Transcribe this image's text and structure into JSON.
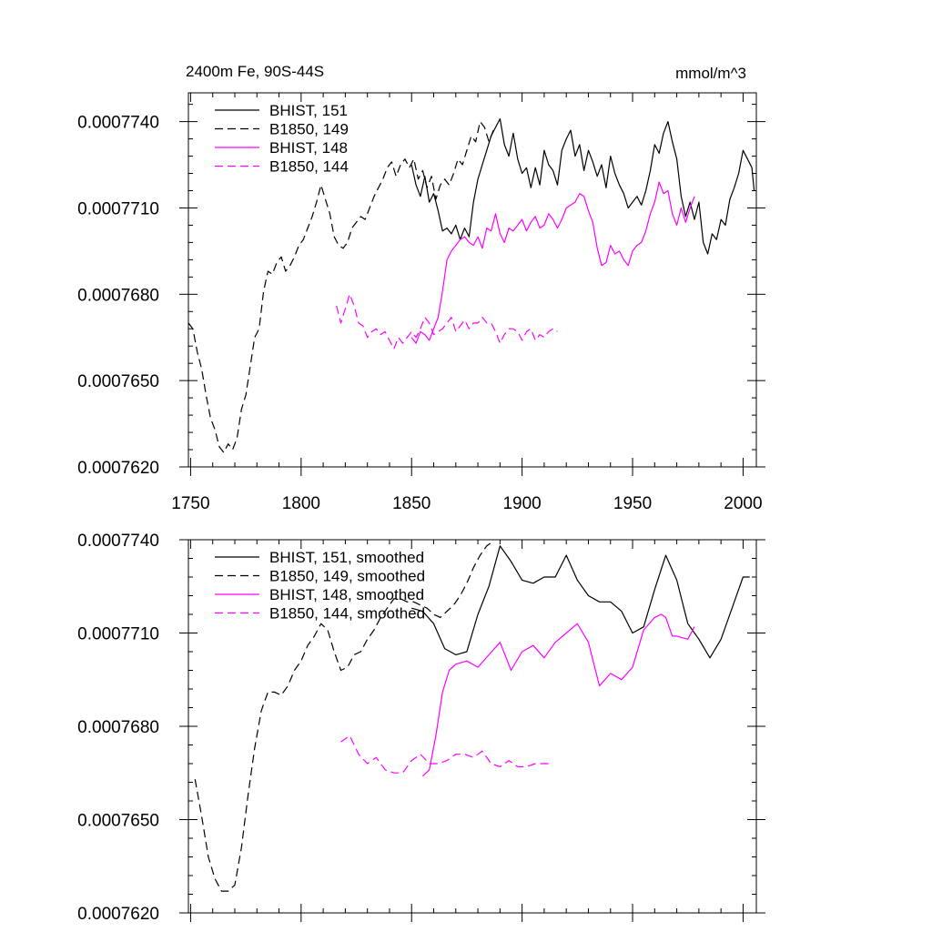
{
  "chart_data": [
    {
      "type": "line",
      "title": "2400m Fe, 90S-44S",
      "units": "mmol/m^3",
      "xlim": [
        1749,
        2006
      ],
      "ylim": [
        0.000762,
        0.000775
      ],
      "yticks": [
        "0.0007620",
        "0.0007650",
        "0.0007680",
        "0.0007710",
        "0.0007740"
      ],
      "xticks": [
        "1750",
        "1800",
        "1850",
        "1900",
        "1950",
        "2000"
      ],
      "legend_position": "top-left",
      "grid": false,
      "series": [
        {
          "name": "BHIST, 151",
          "color": "#000000",
          "dash": "solid",
          "x": [
            1850,
            1852,
            1854,
            1856,
            1858,
            1860,
            1862,
            1864,
            1866,
            1868,
            1870,
            1872,
            1874,
            1876,
            1878,
            1880,
            1882,
            1884,
            1886,
            1888,
            1890,
            1892,
            1894,
            1896,
            1898,
            1900,
            1902,
            1904,
            1906,
            1908,
            1910,
            1912,
            1914,
            1916,
            1918,
            1920,
            1922,
            1924,
            1926,
            1928,
            1930,
            1932,
            1934,
            1936,
            1938,
            1940,
            1942,
            1944,
            1946,
            1948,
            1950,
            1952,
            1954,
            1956,
            1958,
            1960,
            1962,
            1964,
            1966,
            1968,
            1970,
            1972,
            1974,
            1976,
            1978,
            1980,
            1982,
            1984,
            1986,
            1988,
            1990,
            1992,
            1994,
            1996,
            1998,
            2000,
            2002,
            2004,
            2005
          ],
          "values": [
            0.0007725,
            0.0007718,
            0.0007714,
            0.0007721,
            0.0007712,
            0.0007715,
            0.0007709,
            0.0007702,
            0.0007703,
            0.0007701,
            0.0007704,
            0.0007699,
            0.0007703,
            0.00077,
            0.0007712,
            0.000772,
            0.0007725,
            0.000773,
            0.0007735,
            0.0007738,
            0.0007741,
            0.0007732,
            0.0007728,
            0.0007736,
            0.0007727,
            0.0007722,
            0.0007724,
            0.0007717,
            0.0007724,
            0.0007718,
            0.000773,
            0.0007725,
            0.0007723,
            0.0007718,
            0.000773,
            0.0007734,
            0.0007737,
            0.0007728,
            0.0007732,
            0.0007723,
            0.000773,
            0.0007726,
            0.0007721,
            0.0007725,
            0.0007717,
            0.0007728,
            0.0007722,
            0.0007718,
            0.0007715,
            0.000771,
            0.0007712,
            0.0007714,
            0.0007711,
            0.0007716,
            0.0007723,
            0.0007732,
            0.0007729,
            0.0007736,
            0.000774,
            0.0007733,
            0.0007727,
            0.0007714,
            0.0007707,
            0.0007712,
            0.0007706,
            0.0007712,
            0.0007698,
            0.0007694,
            0.0007701,
            0.0007699,
            0.0007706,
            0.0007704,
            0.0007713,
            0.0007717,
            0.0007722,
            0.000773,
            0.0007727,
            0.0007724,
            0.0007716
          ]
        },
        {
          "name": "B1850, 149",
          "color": "#000000",
          "dash": "dashed",
          "x": [
            1749,
            1751,
            1753,
            1755,
            1757,
            1759,
            1761,
            1763,
            1765,
            1767,
            1769,
            1771,
            1773,
            1775,
            1777,
            1779,
            1781,
            1783,
            1785,
            1787,
            1789,
            1791,
            1793,
            1795,
            1797,
            1799,
            1801,
            1803,
            1805,
            1807,
            1809,
            1811,
            1813,
            1815,
            1817,
            1819,
            1821,
            1823,
            1825,
            1827,
            1829,
            1831,
            1833,
            1835,
            1837,
            1839,
            1841,
            1843,
            1845,
            1847,
            1849,
            1851,
            1853,
            1855,
            1857,
            1859,
            1861,
            1863,
            1865,
            1867,
            1869,
            1871,
            1873,
            1875,
            1877,
            1879,
            1881,
            1883,
            1885,
            1887
          ],
          "values": [
            0.000767,
            0.0007668,
            0.000766,
            0.0007654,
            0.0007645,
            0.0007637,
            0.0007633,
            0.0007627,
            0.0007625,
            0.0007628,
            0.0007626,
            0.000763,
            0.000764,
            0.0007645,
            0.0007655,
            0.0007665,
            0.0007668,
            0.0007681,
            0.0007688,
            0.0007687,
            0.0007691,
            0.0007693,
            0.0007688,
            0.000769,
            0.0007693,
            0.0007697,
            0.0007699,
            0.0007703,
            0.0007707,
            0.0007712,
            0.0007718,
            0.0007713,
            0.0007708,
            0.00077,
            0.0007697,
            0.0007696,
            0.0007698,
            0.0007703,
            0.0007705,
            0.0007707,
            0.0007706,
            0.000771,
            0.0007714,
            0.0007717,
            0.000772,
            0.0007724,
            0.0007726,
            0.0007721,
            0.0007725,
            0.0007727,
            0.0007724,
            0.0007727,
            0.000772,
            0.0007723,
            0.0007717,
            0.0007721,
            0.0007713,
            0.0007718,
            0.000772,
            0.0007718,
            0.0007722,
            0.0007727,
            0.0007725,
            0.000773,
            0.0007735,
            0.0007733,
            0.000774,
            0.0007738,
            0.0007733,
            0.0007737
          ]
        },
        {
          "name": "BHIST, 148",
          "color": "#ff00ff",
          "dash": "solid",
          "x": [
            1850,
            1852,
            1854,
            1856,
            1858,
            1860,
            1862,
            1864,
            1866,
            1868,
            1870,
            1872,
            1874,
            1876,
            1878,
            1880,
            1882,
            1884,
            1886,
            1888,
            1890,
            1892,
            1894,
            1896,
            1898,
            1900,
            1902,
            1904,
            1906,
            1908,
            1910,
            1912,
            1914,
            1916,
            1918,
            1920,
            1922,
            1924,
            1926,
            1928,
            1930,
            1932,
            1934,
            1936,
            1938,
            1940,
            1942,
            1944,
            1946,
            1948,
            1950,
            1952,
            1954,
            1956,
            1958,
            1960,
            1962,
            1964,
            1966,
            1968,
            1970,
            1972,
            1974,
            1976,
            1978
          ],
          "values": [
            0.0007665,
            0.0007663,
            0.0007667,
            0.0007666,
            0.0007664,
            0.0007668,
            0.0007672,
            0.0007681,
            0.0007692,
            0.0007695,
            0.0007697,
            0.0007699,
            0.00077,
            0.0007698,
            0.0007697,
            0.00077,
            0.0007696,
            0.0007703,
            0.0007702,
            0.0007708,
            0.0007701,
            0.0007698,
            0.0007703,
            0.0007702,
            0.0007704,
            0.0007706,
            0.0007702,
            0.0007705,
            0.0007707,
            0.0007703,
            0.0007704,
            0.0007708,
            0.0007706,
            0.0007703,
            0.0007706,
            0.000771,
            0.0007711,
            0.0007712,
            0.0007715,
            0.0007714,
            0.0007709,
            0.0007705,
            0.0007696,
            0.000769,
            0.0007691,
            0.0007697,
            0.0007694,
            0.0007695,
            0.0007692,
            0.000769,
            0.0007695,
            0.0007697,
            0.0007698,
            0.0007702,
            0.0007708,
            0.0007712,
            0.0007719,
            0.0007715,
            0.0007716,
            0.0007708,
            0.0007704,
            0.000771,
            0.0007705,
            0.000771,
            0.0007714
          ]
        },
        {
          "name": "B1850, 144",
          "color": "#ff00ff",
          "dash": "dashed",
          "x": [
            1816,
            1818,
            1820,
            1822,
            1824,
            1826,
            1828,
            1830,
            1832,
            1834,
            1836,
            1838,
            1840,
            1842,
            1844,
            1846,
            1848,
            1850,
            1852,
            1854,
            1856,
            1858,
            1860,
            1862,
            1864,
            1866,
            1868,
            1870,
            1872,
            1874,
            1876,
            1878,
            1880,
            1882,
            1884,
            1886,
            1888,
            1890,
            1892,
            1894,
            1896,
            1898,
            1900,
            1902,
            1904,
            1906,
            1908,
            1910,
            1912,
            1914,
            1916
          ],
          "values": [
            0.0007676,
            0.000767,
            0.0007675,
            0.000768,
            0.0007676,
            0.000767,
            0.0007669,
            0.0007665,
            0.0007667,
            0.0007668,
            0.0007666,
            0.0007667,
            0.0007664,
            0.0007661,
            0.0007665,
            0.0007663,
            0.0007665,
            0.0007667,
            0.0007665,
            0.0007668,
            0.0007672,
            0.000767,
            0.0007666,
            0.0007667,
            0.0007668,
            0.000767,
            0.0007672,
            0.0007667,
            0.0007669,
            0.0007671,
            0.0007668,
            0.000767,
            0.000767,
            0.0007672,
            0.000767,
            0.000767,
            0.0007667,
            0.0007663,
            0.0007666,
            0.0007668,
            0.0007668,
            0.0007667,
            0.0007664,
            0.0007667,
            0.0007668,
            0.0007664,
            0.0007666,
            0.0007665,
            0.0007667,
            0.0007668,
            0.0007667
          ]
        }
      ]
    },
    {
      "type": "line",
      "xlim": [
        1749,
        2006
      ],
      "ylim": [
        0.000762,
        0.000774
      ],
      "yticks": [
        "0.0007620",
        "0.0007650",
        "0.0007680",
        "0.0007710",
        "0.0007740"
      ],
      "legend_position": "top-left",
      "grid": false,
      "series": [
        {
          "name": "BHIST, 151, smoothed",
          "color": "#000000",
          "dash": "solid",
          "x": [
            1850,
            1855,
            1860,
            1865,
            1870,
            1875,
            1880,
            1885,
            1890,
            1895,
            1900,
            1905,
            1910,
            1915,
            1920,
            1925,
            1930,
            1935,
            1940,
            1945,
            1950,
            1955,
            1960,
            1965,
            1970,
            1975,
            1980,
            1985,
            1990,
            1995,
            2000,
            2003
          ],
          "values": [
            0.0007718,
            0.0007717,
            0.0007713,
            0.0007705,
            0.0007703,
            0.0007704,
            0.0007716,
            0.0007725,
            0.0007738,
            0.0007733,
            0.0007727,
            0.0007726,
            0.0007728,
            0.0007728,
            0.0007735,
            0.0007727,
            0.0007722,
            0.000772,
            0.000772,
            0.0007717,
            0.000771,
            0.0007712,
            0.0007724,
            0.0007735,
            0.0007727,
            0.0007713,
            0.0007708,
            0.0007702,
            0.0007708,
            0.0007718,
            0.0007728,
            0.0007728
          ]
        },
        {
          "name": "B1850, 149, smoothed",
          "color": "#000000",
          "dash": "dashed",
          "x": [
            1752,
            1755,
            1758,
            1761,
            1764,
            1767,
            1770,
            1773,
            1776,
            1779,
            1782,
            1785,
            1788,
            1791,
            1794,
            1797,
            1800,
            1803,
            1806,
            1809,
            1812,
            1815,
            1818,
            1821,
            1824,
            1827,
            1830,
            1833,
            1836,
            1839,
            1842,
            1845,
            1848,
            1851,
            1854,
            1857,
            1860,
            1863,
            1866,
            1869,
            1872,
            1875,
            1878,
            1881,
            1884,
            1886
          ],
          "values": [
            0.0007663,
            0.0007651,
            0.0007638,
            0.0007631,
            0.0007627,
            0.0007627,
            0.0007629,
            0.0007641,
            0.0007658,
            0.0007673,
            0.0007685,
            0.0007691,
            0.0007691,
            0.000769,
            0.0007693,
            0.0007698,
            0.0007701,
            0.0007706,
            0.0007709,
            0.0007713,
            0.0007711,
            0.0007704,
            0.0007698,
            0.0007699,
            0.0007703,
            0.0007704,
            0.0007708,
            0.0007711,
            0.0007715,
            0.0007718,
            0.0007721,
            0.0007721,
            0.000772,
            0.000772,
            0.0007719,
            0.0007718,
            0.0007716,
            0.0007715,
            0.0007717,
            0.0007719,
            0.0007722,
            0.0007726,
            0.0007731,
            0.0007735,
            0.0007738,
            0.0007739
          ]
        },
        {
          "name": "BHIST, 148, smoothed",
          "color": "#ff00ff",
          "dash": "solid",
          "x": [
            1855,
            1858,
            1861,
            1864,
            1867,
            1870,
            1875,
            1880,
            1885,
            1890,
            1895,
            1900,
            1905,
            1910,
            1915,
            1920,
            1925,
            1930,
            1935,
            1940,
            1945,
            1950,
            1955,
            1960,
            1963,
            1965,
            1968,
            1970,
            1975,
            1978
          ],
          "values": [
            0.0007664,
            0.0007666,
            0.0007677,
            0.0007691,
            0.0007698,
            0.00077,
            0.0007701,
            0.0007699,
            0.0007703,
            0.0007707,
            0.0007698,
            0.0007704,
            0.0007706,
            0.0007702,
            0.0007707,
            0.000771,
            0.0007713,
            0.0007707,
            0.0007693,
            0.0007697,
            0.0007695,
            0.0007699,
            0.0007711,
            0.0007715,
            0.0007716,
            0.0007715,
            0.0007709,
            0.0007709,
            0.0007708,
            0.0007712
          ]
        },
        {
          "name": "B1850, 144, smoothed",
          "color": "#ff00ff",
          "dash": "dashed",
          "x": [
            1818,
            1822,
            1826,
            1830,
            1834,
            1838,
            1842,
            1846,
            1850,
            1854,
            1858,
            1862,
            1866,
            1870,
            1874,
            1878,
            1882,
            1886,
            1890,
            1894,
            1898,
            1902,
            1906,
            1910,
            1914
          ],
          "values": [
            0.0007675,
            0.0007677,
            0.0007671,
            0.0007668,
            0.000767,
            0.0007666,
            0.0007665,
            0.0007665,
            0.0007669,
            0.0007671,
            0.0007668,
            0.0007668,
            0.0007669,
            0.0007671,
            0.0007671,
            0.000767,
            0.0007672,
            0.0007668,
            0.0007667,
            0.0007669,
            0.0007667,
            0.0007667,
            0.0007668,
            0.0007668,
            0.0007668
          ]
        }
      ]
    }
  ]
}
